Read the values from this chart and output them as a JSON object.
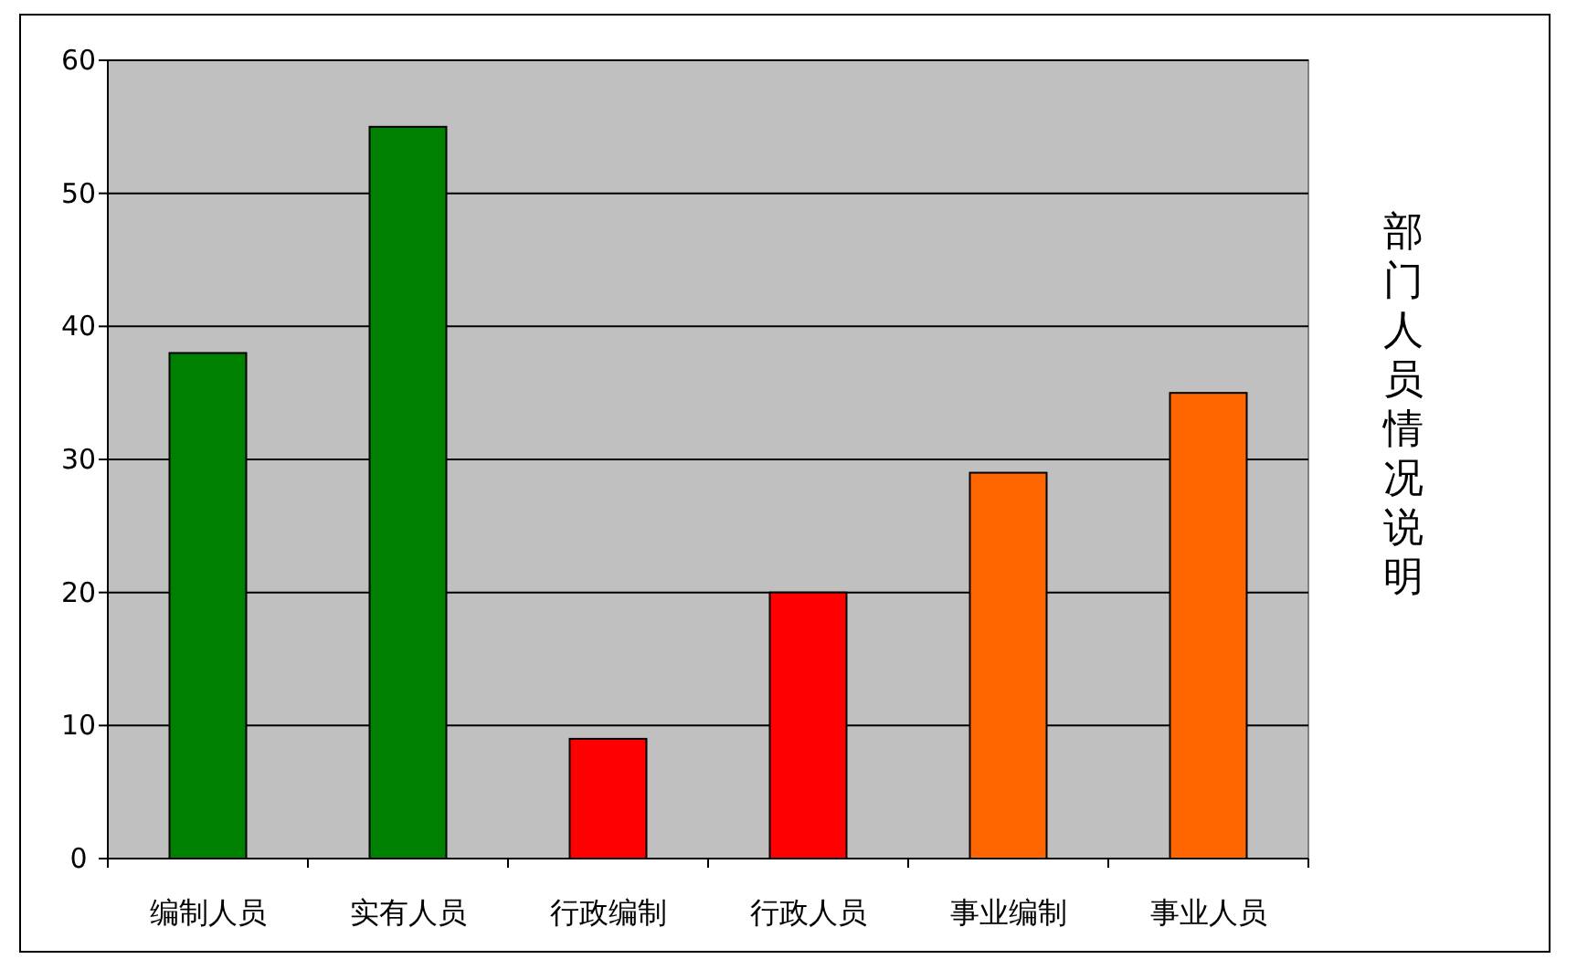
{
  "chart_data": {
    "type": "bar",
    "title": "部门人员情况说明",
    "categories": [
      "编制人员",
      "实有人员",
      "行政编制",
      "行政人员",
      "事业编制",
      "事业人员"
    ],
    "values": [
      38,
      55,
      9,
      20,
      29,
      35
    ],
    "colors": [
      "#008000",
      "#008000",
      "#ff0000",
      "#ff0000",
      "#ff6600",
      "#ff6600"
    ],
    "ylim": [
      0,
      60
    ],
    "yticks": [
      0,
      10,
      20,
      30,
      40,
      50,
      60
    ],
    "grid": "y"
  }
}
